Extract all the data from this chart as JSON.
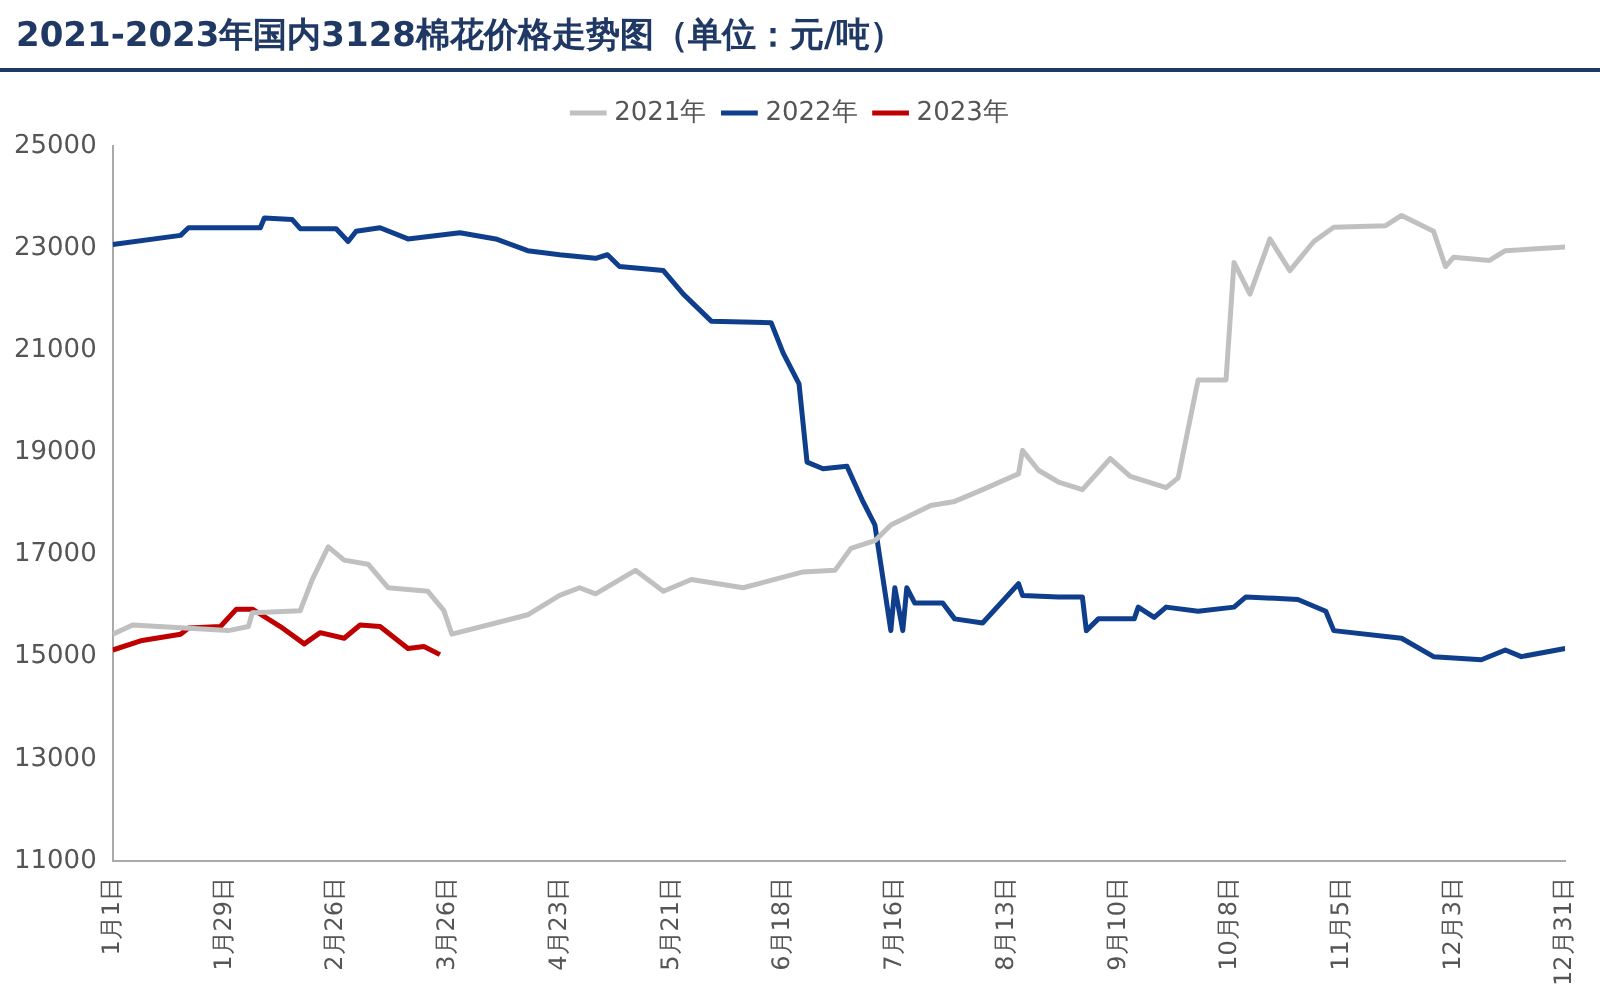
{
  "chart_data": {
    "type": "line",
    "title": "2021-2023年国内3128棉花价格走势图（单位：元/吨）",
    "xlim": [
      "--01-01",
      "--12-31"
    ],
    "xticks": [
      {
        "value": "--01-01",
        "label": "1月1日"
      },
      {
        "value": "--01-29",
        "label": "1月29日"
      },
      {
        "value": "--02-26",
        "label": "2月26日"
      },
      {
        "value": "--03-26",
        "label": "3月26日"
      },
      {
        "value": "--04-23",
        "label": "4月23日"
      },
      {
        "value": "--05-21",
        "label": "5月21日"
      },
      {
        "value": "--06-18",
        "label": "6月18日"
      },
      {
        "value": "--07-16",
        "label": "7月16日"
      },
      {
        "value": "--08-13",
        "label": "8月13日"
      },
      {
        "value": "--09-10",
        "label": "9月10日"
      },
      {
        "value": "--10-08",
        "label": "10月8日"
      },
      {
        "value": "--11-05",
        "label": "11月5日"
      },
      {
        "value": "--12-03",
        "label": "12月3日"
      },
      {
        "value": "--12-31",
        "label": "12月31日"
      }
    ],
    "ylim": [
      11000,
      25000
    ],
    "yticks": [
      11000,
      13000,
      15000,
      17000,
      19000,
      21000,
      23000,
      25000
    ],
    "grid": false,
    "legend": "top",
    "marker": "none",
    "line_style": "solid",
    "series": [
      {
        "name": "2021年",
        "color": "#c0c0c0",
        "x": [
          "--01-01",
          "--01-06",
          "--01-30",
          "--02-04",
          "--02-05",
          "--02-17",
          "--02-20",
          "--02-24",
          "--02-28",
          "--03-06",
          "--03-11",
          "--03-21",
          "--03-25",
          "--03-27",
          "--04-07",
          "--04-15",
          "--04-23",
          "--04-28",
          "--05-02",
          "--05-12",
          "--05-19",
          "--05-26",
          "--06-08",
          "--06-23",
          "--07-01",
          "--07-05",
          "--07-11",
          "--07-15",
          "--07-25",
          "--07-31",
          "--08-07",
          "--08-16",
          "--08-17",
          "--08-21",
          "--08-26",
          "--09-01",
          "--09-08",
          "--09-13",
          "--09-22",
          "--09-25",
          "--09-30",
          "--10-07",
          "--10-09",
          "--10-13",
          "--10-18",
          "--10-23",
          "--10-29",
          "--11-03",
          "--11-16",
          "--11-20",
          "--11-28",
          "--12-01",
          "--12-03",
          "--12-12",
          "--12-16",
          "--12-31"
        ],
        "values": [
          15440,
          15620,
          15510,
          15590,
          15860,
          15900,
          16510,
          17150,
          16890,
          16810,
          16350,
          16280,
          15900,
          15440,
          15660,
          15820,
          16200,
          16350,
          16230,
          16690,
          16280,
          16510,
          16350,
          16660,
          16690,
          17120,
          17270,
          17580,
          17960,
          18040,
          18270,
          18580,
          19040,
          18650,
          18420,
          18270,
          18880,
          18530,
          18310,
          18500,
          20420,
          20420,
          22720,
          22100,
          23180,
          22560,
          23130,
          23410,
          23440,
          23640,
          23330,
          22640,
          22820,
          22760,
          22950,
          23020
        ]
      },
      {
        "name": "2022年",
        "color": "#0f3f8c",
        "x": [
          "--01-01",
          "--01-18",
          "--01-20",
          "--02-07",
          "--02-08",
          "--02-15",
          "--02-17",
          "--02-26",
          "--03-01",
          "--03-03",
          "--03-09",
          "--03-16",
          "--03-29",
          "--04-07",
          "--04-15",
          "--04-23",
          "--05-02",
          "--05-05",
          "--05-08",
          "--05-19",
          "--05-24",
          "--05-31",
          "--06-15",
          "--06-18",
          "--06-22",
          "--06-24",
          "--06-28",
          "--07-04",
          "--07-08",
          "--07-11",
          "--07-15",
          "--07-16",
          "--07-18",
          "--07-19",
          "--07-21",
          "--07-28",
          "--07-31",
          "--08-07",
          "--08-16",
          "--08-17",
          "--08-26",
          "--09-01",
          "--09-02",
          "--09-05",
          "--09-14",
          "--09-15",
          "--09-19",
          "--09-22",
          "--09-30",
          "--10-09",
          "--10-12",
          "--10-25",
          "--11-01",
          "--11-03",
          "--11-20",
          "--11-28",
          "--12-10",
          "--12-16",
          "--12-20",
          "--12-31"
        ],
        "values": [
          23070,
          23250,
          23400,
          23400,
          23590,
          23560,
          23380,
          23380,
          23130,
          23330,
          23400,
          23180,
          23300,
          23180,
          22950,
          22870,
          22800,
          22870,
          22640,
          22560,
          22100,
          21570,
          21540,
          20950,
          20340,
          18810,
          18680,
          18730,
          18040,
          17580,
          15510,
          16350,
          15510,
          16350,
          16050,
          16050,
          15740,
          15660,
          16430,
          16200,
          16170,
          16170,
          15510,
          15740,
          15740,
          15970,
          15770,
          15970,
          15890,
          15970,
          16170,
          16120,
          15890,
          15510,
          15360,
          15000,
          14940,
          15130,
          15000,
          15160
        ]
      },
      {
        "name": "2023年",
        "color": "#c00000",
        "x": [
          "--01-01",
          "--01-08",
          "--01-18",
          "--01-20",
          "--01-28",
          "--02-01",
          "--02-05",
          "--02-12",
          "--02-18",
          "--02-22",
          "--02-28",
          "--03-04",
          "--03-09",
          "--03-16",
          "--03-20",
          "--03-24"
        ],
        "values": [
          15130,
          15310,
          15440,
          15560,
          15590,
          15930,
          15930,
          15590,
          15250,
          15470,
          15360,
          15620,
          15590,
          15160,
          15200,
          15040
        ]
      }
    ]
  }
}
